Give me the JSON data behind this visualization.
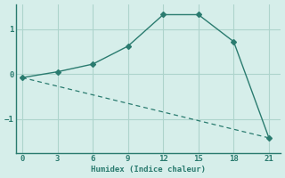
{
  "line1_x": [
    0,
    3,
    6,
    9,
    12,
    15,
    18,
    21
  ],
  "line1_y": [
    -0.08,
    0.05,
    0.22,
    0.62,
    1.32,
    1.32,
    0.72,
    -1.42
  ],
  "line2_x": [
    0,
    21
  ],
  "line2_y": [
    -0.08,
    -1.42
  ],
  "line_color": "#2a7b6f",
  "bg_color": "#d6eeea",
  "xlabel": "Humidex (Indice chaleur)",
  "xticks": [
    0,
    3,
    6,
    9,
    12,
    15,
    18,
    21
  ],
  "yticks": [
    -1,
    0,
    1
  ],
  "xlim": [
    -0.5,
    22
  ],
  "ylim": [
    -1.75,
    1.55
  ],
  "grid_color": "#aed4cc",
  "spine_color": "#2a7b6f"
}
